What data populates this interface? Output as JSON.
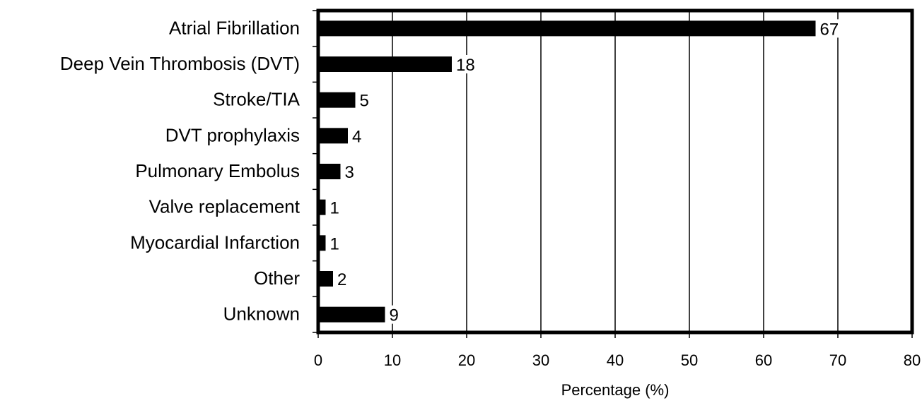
{
  "chart_data": {
    "type": "bar",
    "orientation": "horizontal",
    "categories": [
      "Atrial Fibrillation",
      "Deep Vein Thrombosis (DVT)",
      "Stroke/TIA",
      "DVT prophylaxis",
      "Pulmonary Embolus",
      "Valve replacement",
      "Myocardial Infarction",
      "Other",
      "Unknown"
    ],
    "values": [
      67,
      18,
      5,
      4,
      3,
      1,
      1,
      2,
      9
    ],
    "data_labels": [
      "67",
      "18",
      "5",
      "4",
      "3",
      "1",
      "1",
      "2",
      "9"
    ],
    "title": "",
    "xlabel": "Percentage (%)",
    "ylabel": "",
    "xlim": [
      0,
      80
    ],
    "xticks": [
      0,
      10,
      20,
      30,
      40,
      50,
      60,
      70,
      80
    ],
    "xtick_labels": [
      "0",
      "10",
      "20",
      "30",
      "40",
      "50",
      "60",
      "70",
      "80"
    ],
    "grid": "vertical",
    "legend": "none",
    "bar_color": "#000000",
    "grid_color": "#000000"
  }
}
